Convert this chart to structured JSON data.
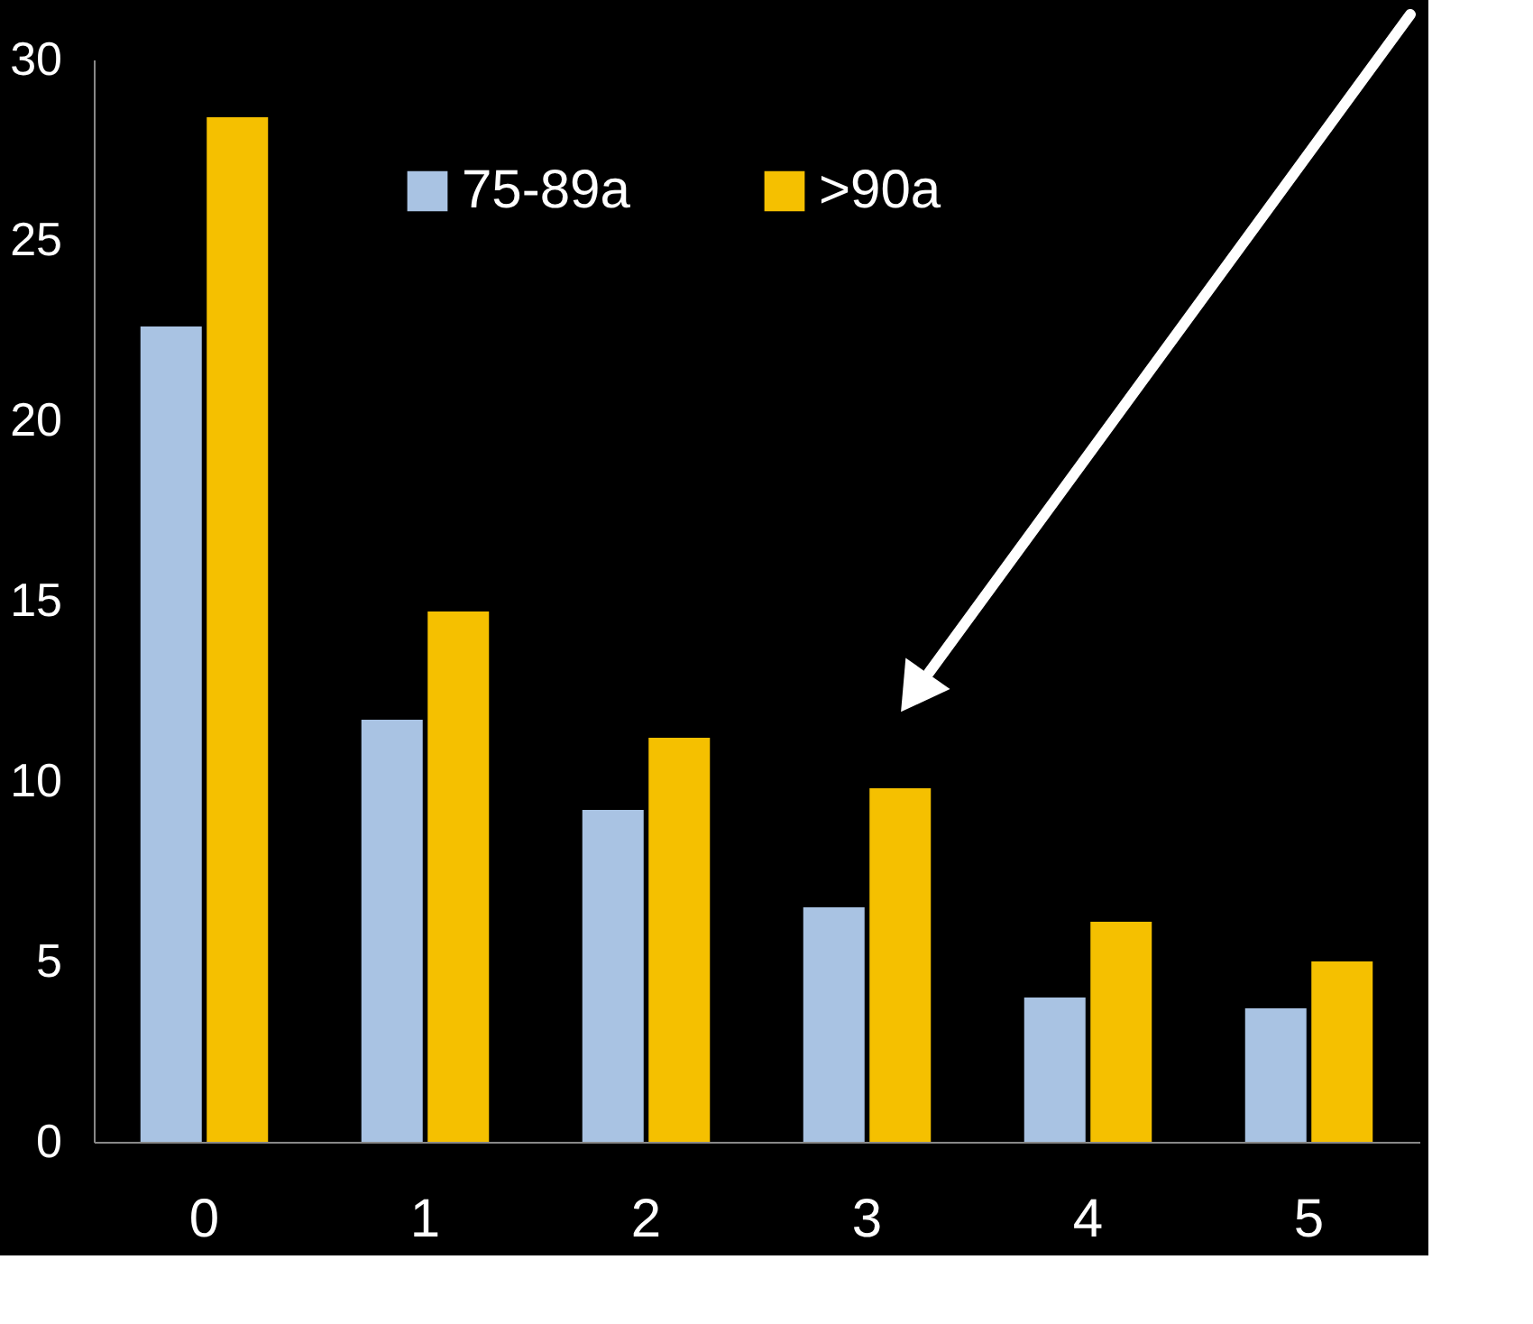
{
  "chart_data": {
    "type": "bar",
    "categories": [
      "0",
      "1",
      "2",
      "3",
      "4",
      "5"
    ],
    "series": [
      {
        "name": "75-89a",
        "color": "#a9c3e3",
        "values": [
          22.6,
          11.7,
          9.2,
          6.5,
          4.0,
          3.7
        ]
      },
      {
        "name": ">90a",
        "color": "#f5c000",
        "values": [
          28.4,
          14.7,
          11.2,
          9.8,
          6.1,
          5.0
        ]
      }
    ],
    "ylim": [
      0,
      30
    ],
    "yticks": [
      0,
      5,
      10,
      15,
      20,
      25,
      30
    ],
    "grid": false,
    "legend": "top"
  }
}
